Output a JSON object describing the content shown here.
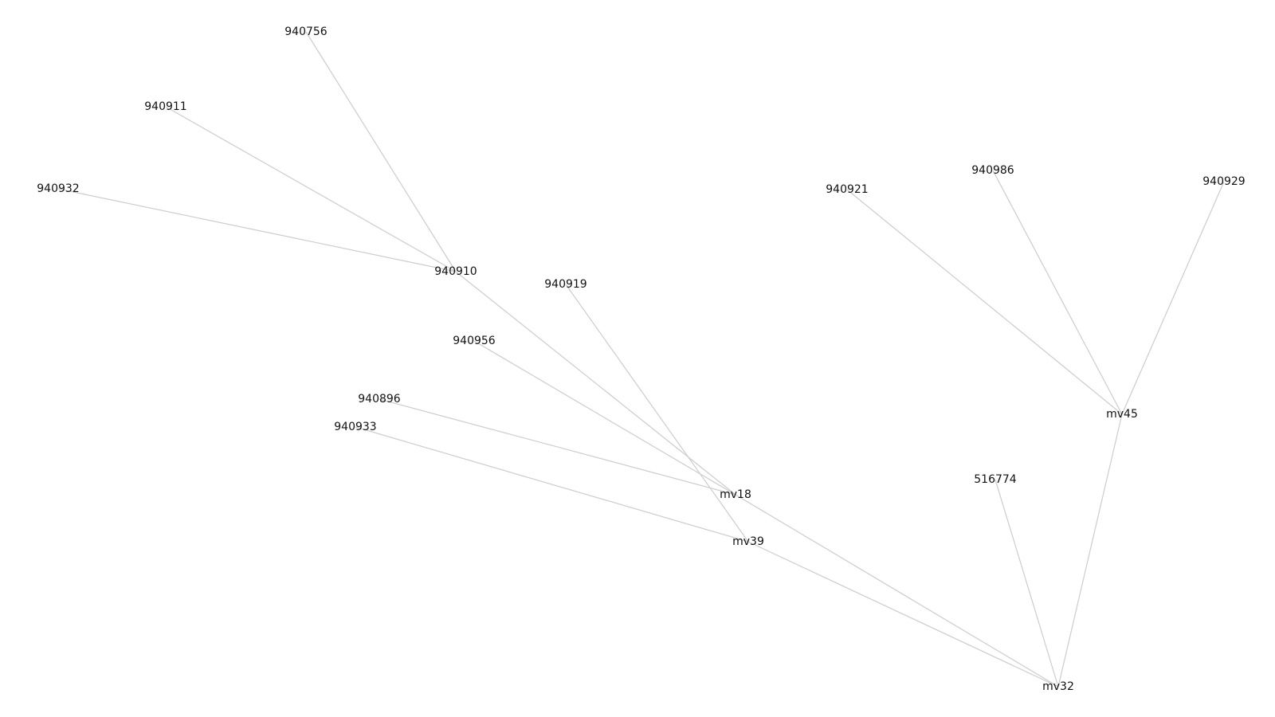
{
  "graph": {
    "nodes": [
      {
        "id": "940756",
        "label": "940756"
      },
      {
        "id": "940911",
        "label": "940911"
      },
      {
        "id": "940932",
        "label": "940932"
      },
      {
        "id": "940910",
        "label": "940910"
      },
      {
        "id": "940919",
        "label": "940919"
      },
      {
        "id": "940956",
        "label": "940956"
      },
      {
        "id": "940896",
        "label": "940896"
      },
      {
        "id": "940933",
        "label": "940933"
      },
      {
        "id": "mv18",
        "label": "mv18"
      },
      {
        "id": "mv39",
        "label": "mv39"
      },
      {
        "id": "mv32",
        "label": "mv32"
      },
      {
        "id": "mv45",
        "label": "mv45"
      },
      {
        "id": "940921",
        "label": "940921"
      },
      {
        "id": "940986",
        "label": "940986"
      },
      {
        "id": "940929",
        "label": "940929"
      },
      {
        "id": "516774",
        "label": "516774"
      }
    ],
    "edges": [
      [
        "940756",
        "940910"
      ],
      [
        "940911",
        "940910"
      ],
      [
        "940932",
        "940910"
      ],
      [
        "940910",
        "mv18"
      ],
      [
        "940956",
        "mv18"
      ],
      [
        "940896",
        "mv18"
      ],
      [
        "940919",
        "mv39"
      ],
      [
        "940933",
        "mv39"
      ],
      [
        "mv18",
        "mv32"
      ],
      [
        "mv39",
        "mv32"
      ],
      [
        "516774",
        "mv32"
      ],
      [
        "mv45",
        "mv32"
      ],
      [
        "940921",
        "mv45"
      ],
      [
        "940986",
        "mv45"
      ],
      [
        "940929",
        "mv45"
      ]
    ],
    "colors": {
      "edge": "#cccccc",
      "label": "#111111",
      "background": "#ffffff"
    }
  }
}
